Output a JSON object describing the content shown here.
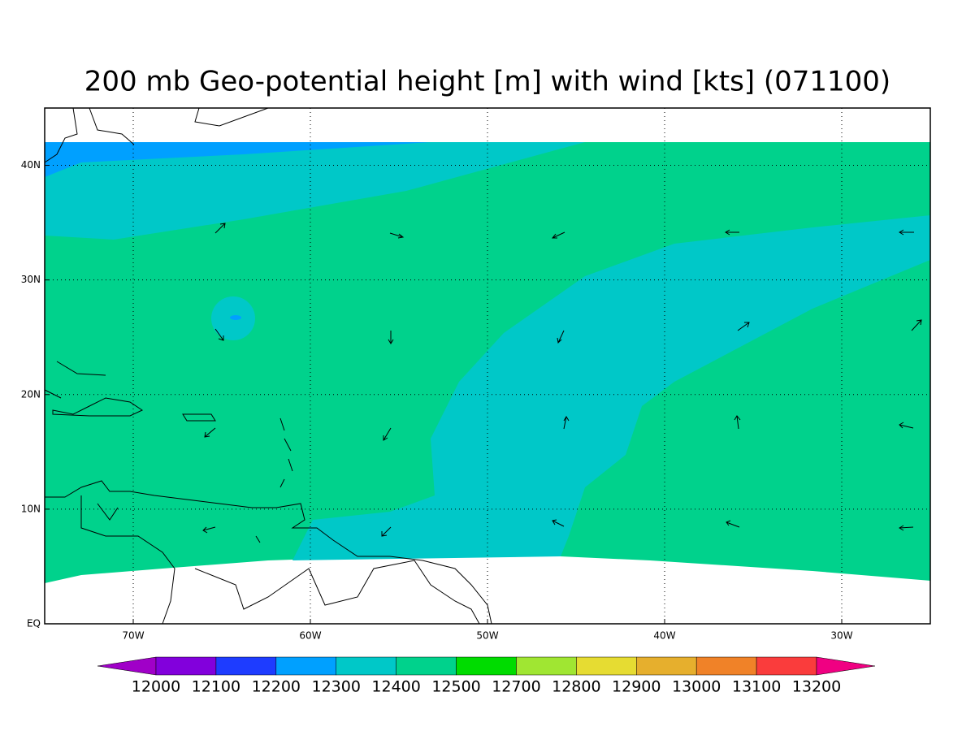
{
  "chart_data": {
    "type": "map",
    "title": "200 mb Geo-potential height [m] with wind [kts] (071100)",
    "xlim": [
      -75,
      -25
    ],
    "xticks": [
      {
        "value": -70,
        "label": "70W"
      },
      {
        "value": -60,
        "label": "60W"
      },
      {
        "value": -50,
        "label": "50W"
      },
      {
        "value": -40,
        "label": "40W"
      },
      {
        "value": -30,
        "label": "30W"
      }
    ],
    "ylim": [
      0,
      45
    ],
    "yticks": [
      {
        "value": 0,
        "label": "EQ"
      },
      {
        "value": 10,
        "label": "10N"
      },
      {
        "value": 20,
        "label": "20N"
      },
      {
        "value": 30,
        "label": "30N"
      },
      {
        "value": 40,
        "label": "40N"
      }
    ],
    "grid": true,
    "colorbar": {
      "levels": [
        12000,
        12100,
        12200,
        12300,
        12400,
        12500,
        12700,
        12800,
        12900,
        13000,
        13100,
        13200
      ],
      "colors": [
        "#a000c8",
        "#8200dc",
        "#1e3cff",
        "#00a0ff",
        "#00c8c8",
        "#00d28c",
        "#00dc00",
        "#a0e632",
        "#e6dc32",
        "#e6af2d",
        "#f08228",
        "#fa3c3c",
        "#f00082"
      ]
    }
  }
}
